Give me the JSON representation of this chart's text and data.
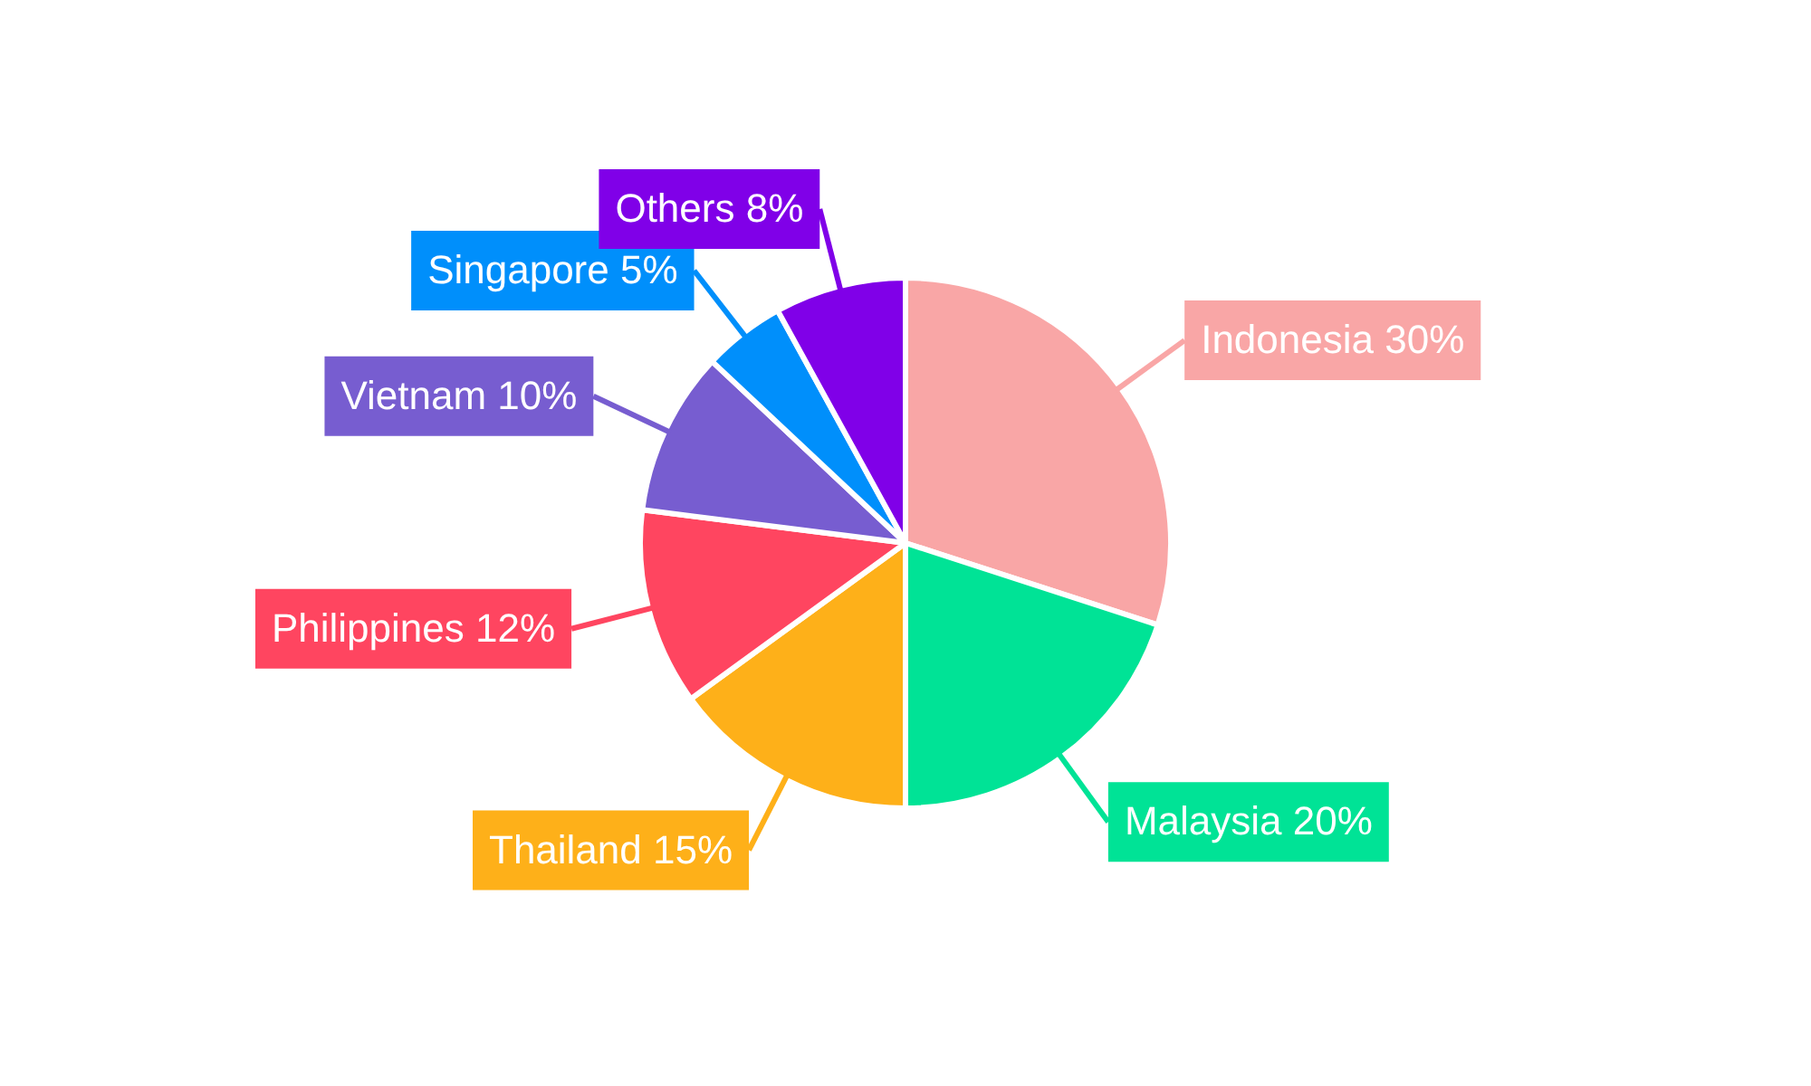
{
  "chart_data": {
    "type": "pie",
    "categories": [
      "Indonesia",
      "Malaysia",
      "Thailand",
      "Philippines",
      "Vietnam",
      "Singapore",
      "Others"
    ],
    "values": [
      30,
      20,
      15,
      12,
      10,
      5,
      8
    ],
    "value_labels": [
      "30%",
      "20%",
      "15%",
      "12%",
      "10%",
      "5%",
      "8%"
    ],
    "colors": [
      "#f9a6a6",
      "#00e396",
      "#feb019",
      "#ff4560",
      "#775dd0",
      "#008ffb",
      "#8000e8"
    ],
    "legend": false
  }
}
